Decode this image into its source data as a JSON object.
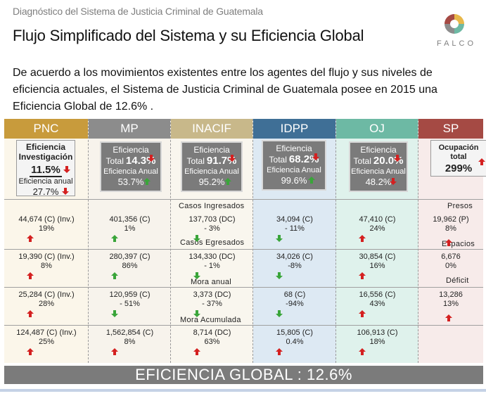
{
  "header": {
    "subtitle": "Diagnóstico del Sistema de Justicia Criminal de Guatemala",
    "title": "Flujo Simplificado del Sistema y su Eficiencia Global",
    "logo_text": "FALCO"
  },
  "intro": "De acuerdo a los movimientos existentes entre los agentes del flujo y sus niveles de eficiencia actuales, el Sistema de Justicia Criminal de Guatemala posee en 2015 una Eficiencia Global de 12.6% .",
  "colors": {
    "up": "#3aa53a",
    "down": "#d42020",
    "header_pnc": "#c89b3c",
    "header_mp": "#8c8c8c",
    "header_inacif": "#c8b88a",
    "header_idpp": "#3f6f96",
    "header_oj": "#6db9a4",
    "header_sp": "#a54a44"
  },
  "columns": [
    {
      "name": "PNC",
      "card": {
        "title": "Eficiencia Investigación",
        "value": "11.5%",
        "value_dir": "down",
        "sub_label": "Eficiencia anual",
        "sub_value": "27.7%",
        "sub_dir": "down"
      },
      "rows": [
        {
          "value": "44,674 (C) (Inv.)",
          "pct": "19%",
          "dir": "up"
        },
        {
          "value": "19,390 (C) (Inv.)",
          "pct": "8%",
          "dir": "up"
        },
        {
          "value": "25,284 (C) (Inv.)",
          "pct": "28%",
          "dir": "up"
        },
        {
          "value": "124,487 (C) (Inv.)",
          "pct": "25%",
          "dir": "up"
        }
      ]
    },
    {
      "name": "MP",
      "card": {
        "title": "Eficiencia",
        "total_label": "Total",
        "value": "14.3%",
        "value_dir": "down",
        "sub_label": "Eficiencia Anual",
        "sub_value": "53.7%",
        "sub_dir": "up"
      },
      "rows": [
        {
          "value": "401,356 (C)",
          "pct": "1%",
          "dir": "up"
        },
        {
          "value": "280,397 (C)",
          "pct": "86%",
          "dir": "up"
        },
        {
          "value": "120,959 (C)",
          "pct": "- 51%",
          "dir": "down"
        },
        {
          "value": "1,562,854 (C)",
          "pct": "8%",
          "dir": "up"
        }
      ]
    },
    {
      "name": "INACIF",
      "card": {
        "title": "Eficiencia",
        "total_label": "Total",
        "value": "91.7%",
        "value_dir": "down",
        "sub_label": "Eficiencia Anual",
        "sub_value": "95.2%",
        "sub_dir": "up"
      },
      "rows": [
        {
          "value": "137,703 (DC)",
          "pct": "- 3%",
          "dir": "down"
        },
        {
          "value": "134,330 (DC)",
          "pct": "- 1%",
          "dir": "down"
        },
        {
          "value": "3,373 (DC)",
          "pct": "- 37%",
          "dir": "down"
        },
        {
          "value": "8,714 (DC)",
          "pct": "63%",
          "dir": "up"
        }
      ]
    },
    {
      "name": "IDPP",
      "card": {
        "title": "Eficiencia",
        "total_label": "Total",
        "value": "68.2%",
        "value_dir": "down",
        "sub_label": "Eficiencia Anual",
        "sub_value": "99.6%",
        "sub_dir": "up"
      },
      "rows": [
        {
          "value": "34,094 (C)",
          "pct": "- 11%",
          "dir": "down"
        },
        {
          "value": "34,026 (C)",
          "pct": "-8%",
          "dir": "down"
        },
        {
          "value": "68 (C)",
          "pct": "-94%",
          "dir": "down"
        },
        {
          "value": "15,805 (C)",
          "pct": "0.4%",
          "dir": "up"
        }
      ]
    },
    {
      "name": "OJ",
      "card": {
        "title": "Eficiencia",
        "total_label": "Total",
        "value": "20.0%",
        "value_dir": "down",
        "sub_label": "Eficiencia Anual",
        "sub_value": "48.2%",
        "sub_dir": "down"
      },
      "rows": [
        {
          "value": "47,410 (C)",
          "pct": "24%",
          "dir": "up"
        },
        {
          "value": "30,854 (C)",
          "pct": "16%",
          "dir": "up"
        },
        {
          "value": "16,556 (C)",
          "pct": "43%",
          "dir": "up"
        },
        {
          "value": "106,913 (C)",
          "pct": "18%",
          "dir": "up"
        }
      ]
    },
    {
      "name": "SP",
      "card": {
        "title": "Ocupación total",
        "value": "299%",
        "value_dir": "up"
      },
      "rows": [
        {
          "value": "19,962 (P)",
          "pct": "8%",
          "dir": "up"
        },
        {
          "value": "6,676",
          "pct": "0%",
          "dir": "none"
        },
        {
          "value": "13,286",
          "pct": "13%",
          "dir": "up"
        }
      ]
    }
  ],
  "sections": [
    "Casos Ingresados",
    "Casos Egresados",
    "Mora anual",
    "Mora Acumulada"
  ],
  "sp_sections": [
    "Presos",
    "Espacios",
    "Déficit"
  ],
  "footer": "EFICIENCIA GLOBAL : 12.6%"
}
